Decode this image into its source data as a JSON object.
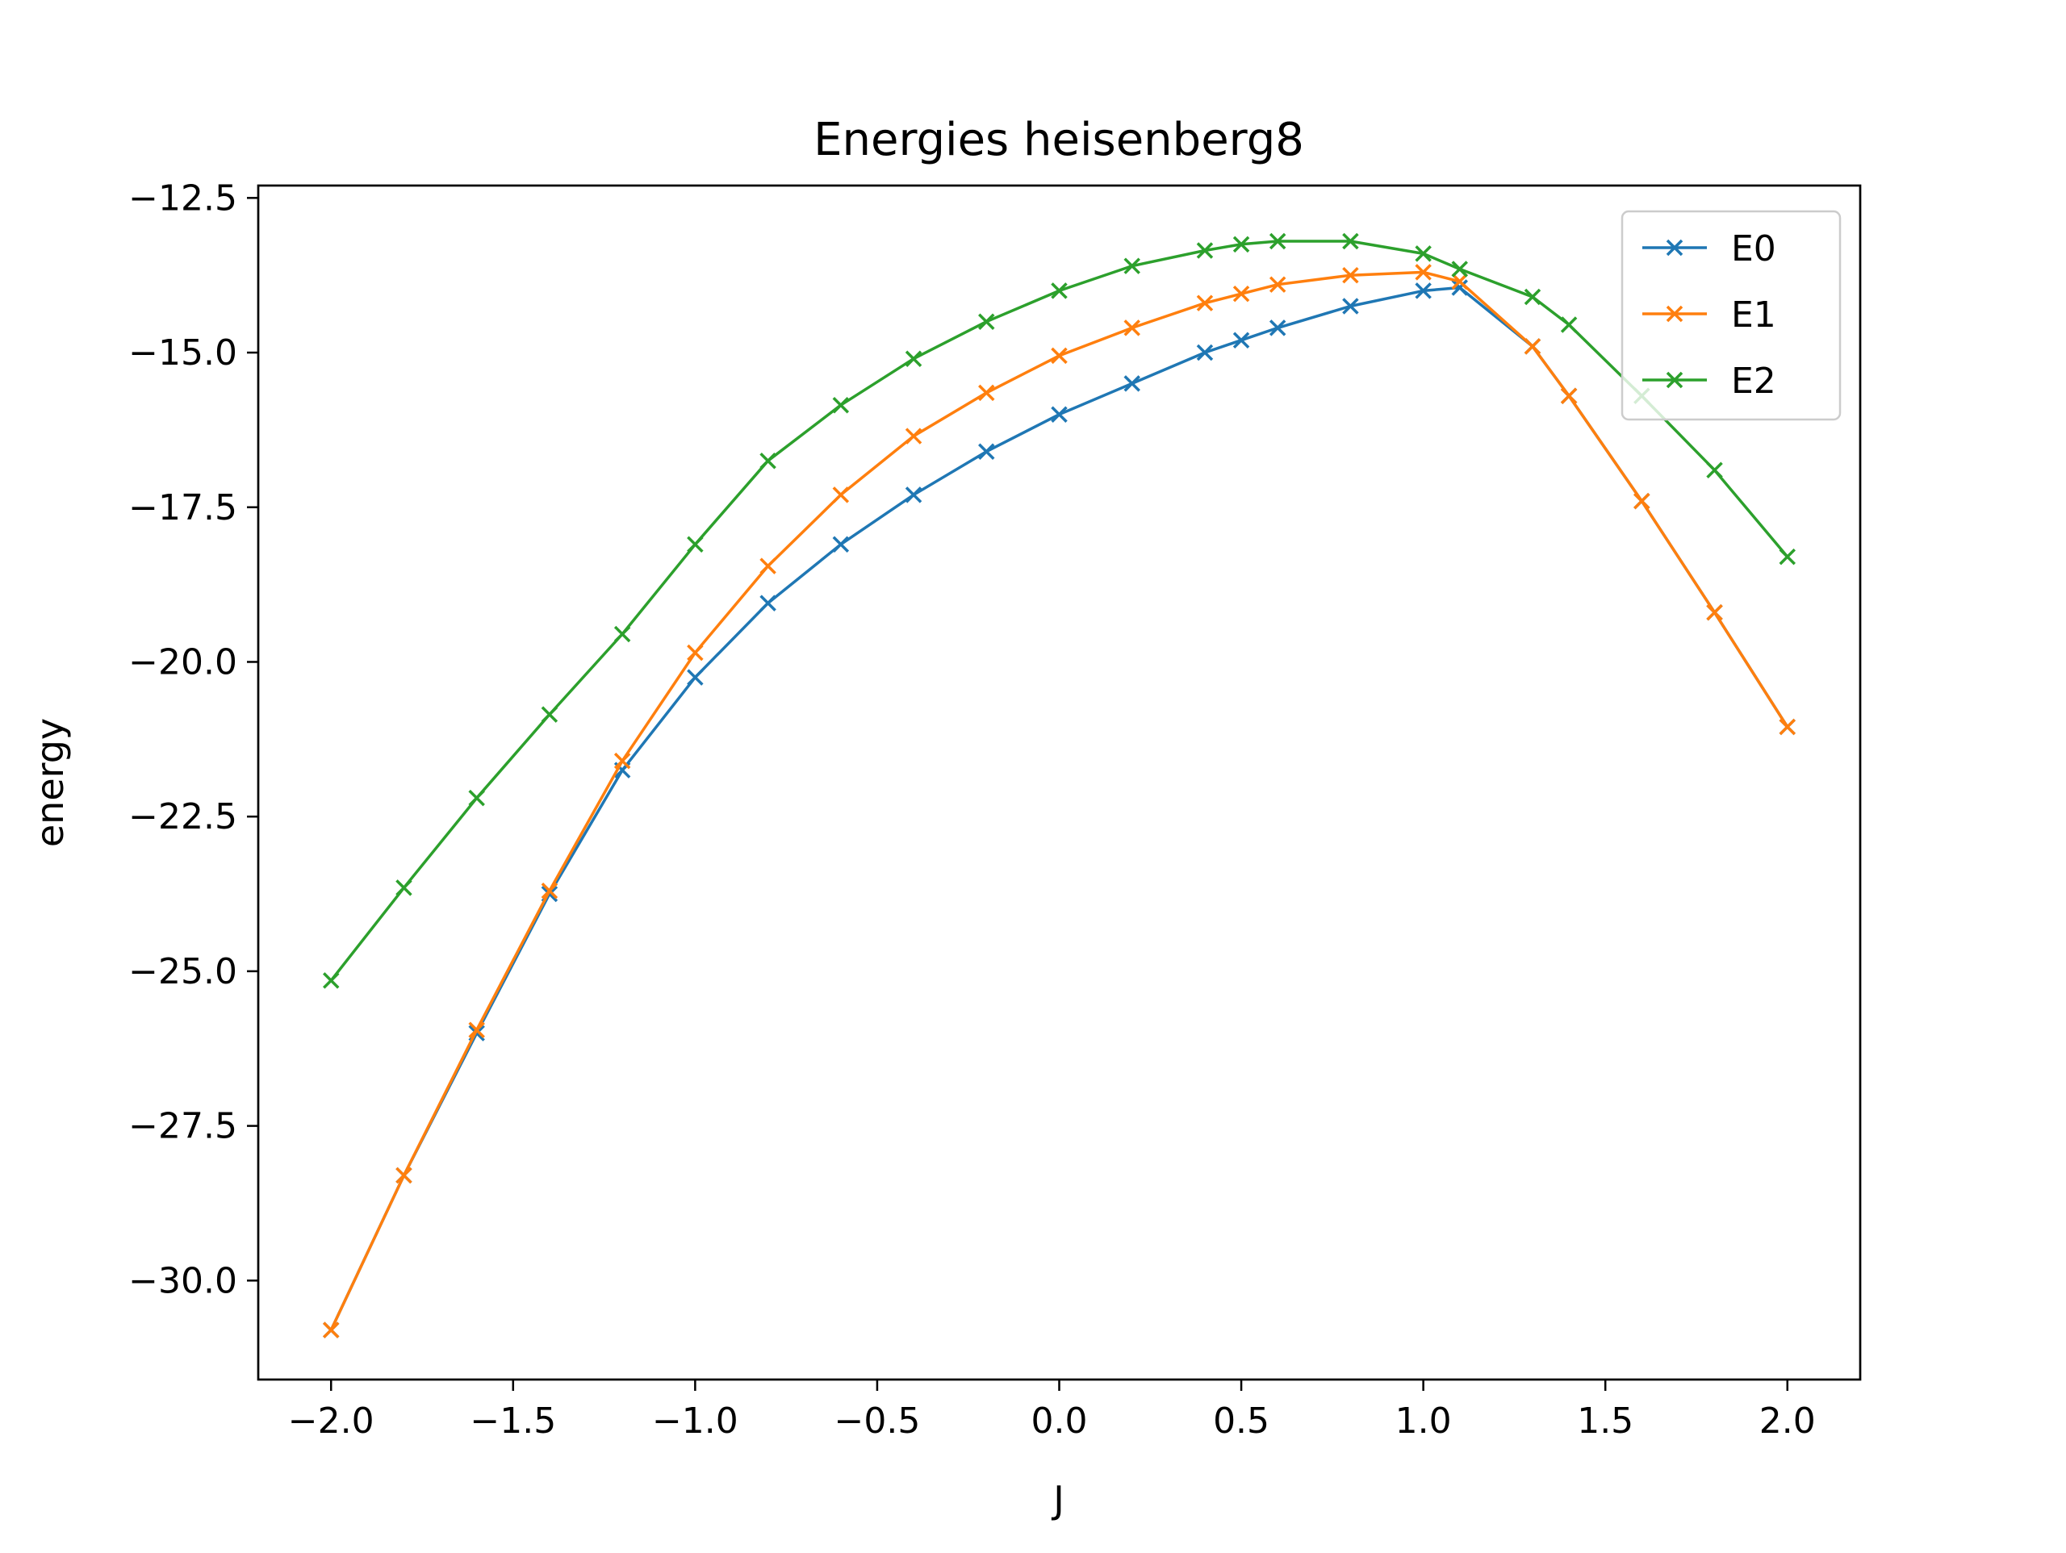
{
  "chart_data": {
    "type": "line",
    "title": "Energies heisenberg8",
    "xlabel": "J",
    "ylabel": "energy",
    "xlim": [
      -2.2,
      2.2
    ],
    "ylim": [
      -31.6,
      -12.3
    ],
    "xticks": [
      -2.0,
      -1.5,
      -1.0,
      -0.5,
      0.0,
      0.5,
      1.0,
      1.5,
      2.0
    ],
    "xtick_labels": [
      "−2.0",
      "−1.5",
      "−1.0",
      "−0.5",
      "0.0",
      "0.5",
      "1.0",
      "1.5",
      "2.0"
    ],
    "yticks": [
      -12.5,
      -15.0,
      -17.5,
      -20.0,
      -22.5,
      -25.0,
      -27.5,
      -30.0
    ],
    "ytick_labels": [
      "−12.5",
      "−15.0",
      "−17.5",
      "−20.0",
      "−22.5",
      "−25.0",
      "−27.5",
      "−30.0"
    ],
    "grid": false,
    "legend": "upper right",
    "marker": "x",
    "x": [
      -2.0,
      -1.8,
      -1.6,
      -1.4,
      -1.2,
      -1.0,
      -0.8,
      -0.6,
      -0.4,
      -0.2,
      0.0,
      0.2,
      0.4,
      0.5,
      0.6,
      0.8,
      1.0,
      1.1,
      1.3,
      1.4,
      1.6,
      1.8,
      2.0
    ],
    "series": [
      {
        "name": "E0",
        "color": "#1f77b4",
        "values": [
          -30.8,
          -28.3,
          -26.0,
          -23.75,
          -21.75,
          -20.25,
          -19.05,
          -18.1,
          -17.3,
          -16.6,
          -16.0,
          -15.5,
          -15.0,
          -14.8,
          -14.6,
          -14.25,
          -14.0,
          -13.95,
          -14.9,
          -15.7,
          -17.4,
          -19.2,
          -21.05
        ]
      },
      {
        "name": "E1",
        "color": "#ff7f0e",
        "values": [
          -30.8,
          -28.3,
          -25.95,
          -23.7,
          -21.6,
          -19.85,
          -18.45,
          -17.3,
          -16.35,
          -15.65,
          -15.05,
          -14.6,
          -14.2,
          -14.05,
          -13.9,
          -13.75,
          -13.7,
          -13.85,
          -14.9,
          -15.7,
          -17.4,
          -19.2,
          -21.05
        ]
      },
      {
        "name": "E2",
        "color": "#2ca02c",
        "values": [
          -25.15,
          -23.65,
          -22.2,
          -20.85,
          -19.55,
          -18.1,
          -16.75,
          -15.85,
          -15.1,
          -14.5,
          -14.0,
          -13.6,
          -13.35,
          -13.25,
          -13.2,
          -13.2,
          -13.4,
          -13.65,
          -14.1,
          -14.55,
          -15.7,
          -16.9,
          -18.3
        ]
      }
    ]
  }
}
